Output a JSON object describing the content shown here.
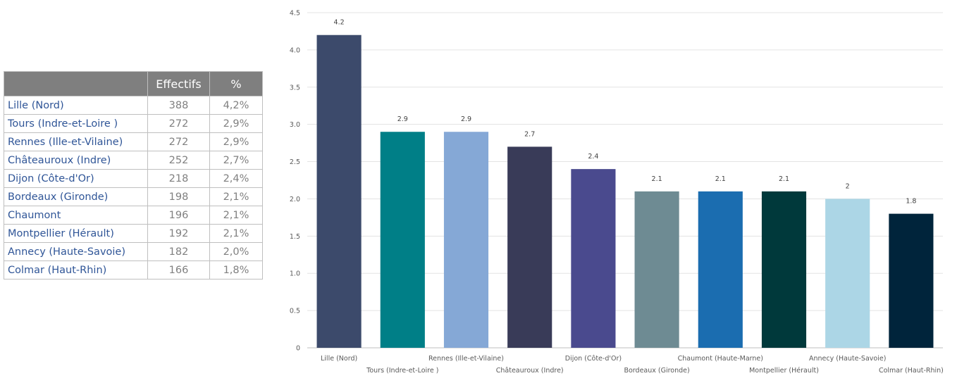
{
  "table": {
    "headers": [
      "",
      "Effectifs",
      "%"
    ],
    "rows": [
      {
        "city": "Lille (Nord)",
        "effectifs": "388",
        "pct": "4,2%"
      },
      {
        "city": "Tours (Indre-et-Loire )",
        "effectifs": "272",
        "pct": "2,9%"
      },
      {
        "city": "Rennes (Ille-et-Vilaine)",
        "effectifs": "272",
        "pct": "2,9%"
      },
      {
        "city": "Châteauroux (Indre)",
        "effectifs": "252",
        "pct": "2,7%"
      },
      {
        "city": "Dijon (Côte-d'Or)",
        "effectifs": "218",
        "pct": "2,4%"
      },
      {
        "city": "Bordeaux (Gironde)",
        "effectifs": "198",
        "pct": "2,1%"
      },
      {
        "city": "Chaumont",
        "effectifs": "196",
        "pct": "2,1%"
      },
      {
        "city": "Montpellier (Hérault)",
        "effectifs": "192",
        "pct": "2,1%"
      },
      {
        "city": "Annecy (Haute-Savoie)",
        "effectifs": "182",
        "pct": "2,0%"
      },
      {
        "city": "Colmar (Haut-Rhin)",
        "effectifs": "166",
        "pct": "1,8%"
      }
    ]
  },
  "chart_data": {
    "type": "bar",
    "title": "",
    "xlabel": "",
    "ylabel": "",
    "ylim": [
      0,
      4.5
    ],
    "yticks": [
      "0",
      "0.5",
      "1.0",
      "1.5",
      "2.0",
      "2.5",
      "3.0",
      "3.5",
      "4.0",
      "4.5"
    ],
    "grid": true,
    "legend": "none",
    "categories": [
      "Lille (Nord)",
      "Tours (Indre-et-Loire )",
      "Rennes (Ille-et-Vilaine)",
      "Châteauroux (Indre)",
      "Dijon (Côte-d'Or)",
      "Bordeaux (Gironde)",
      "Chaumont (Haute-Marne)",
      "Montpellier (Hérault)",
      "Annecy (Haute-Savoie)",
      "Colmar (Haut-Rhin)"
    ],
    "values": [
      4.2,
      2.9,
      2.9,
      2.7,
      2.4,
      2.1,
      2.1,
      2.1,
      2.0,
      1.8
    ],
    "data_labels": [
      "4.2",
      "2.9",
      "2.9",
      "2.7",
      "2.4",
      "2.1",
      "2.1",
      "2.1",
      "2",
      "1.8"
    ],
    "colors": [
      "#3c4a6b",
      "#007f87",
      "#85a8d6",
      "#393b58",
      "#4a4a8e",
      "#6e8b93",
      "#1b6db0",
      "#00393b",
      "#acd6e6",
      "#00243b"
    ]
  }
}
